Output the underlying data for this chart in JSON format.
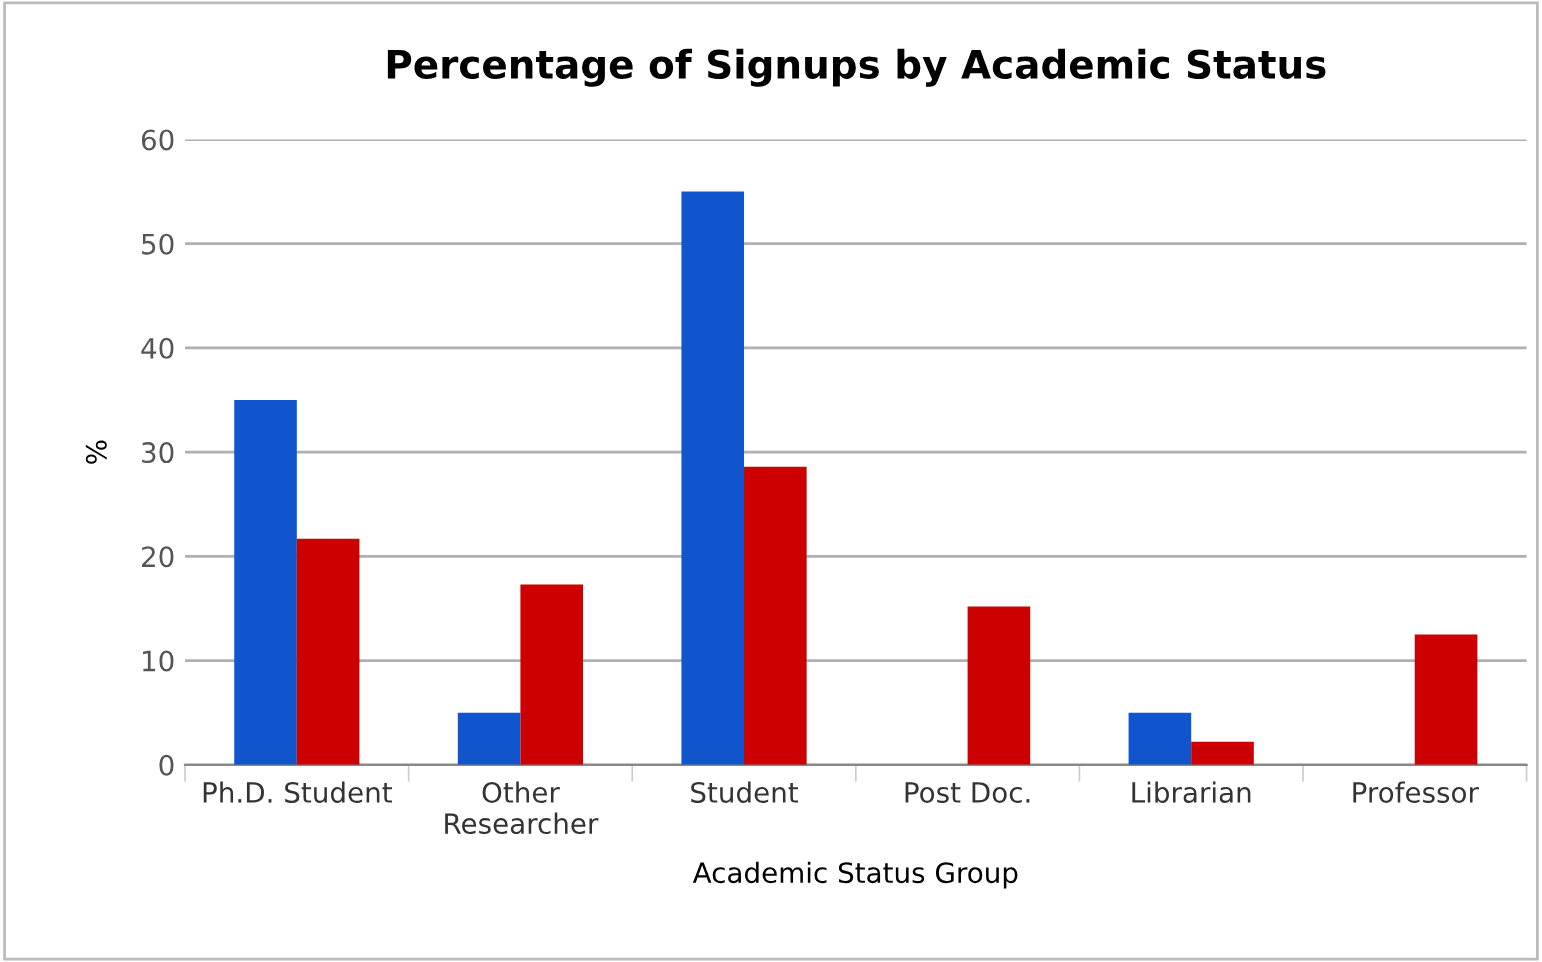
{
  "chart_data": {
    "type": "bar",
    "title": "Percentage of Signups by Academic Status",
    "xlabel": "Academic Status Group",
    "ylabel": "%",
    "categories": [
      "Ph.D. Student",
      "Other\nResearcher",
      "Student",
      "Post Doc.",
      "Librarian",
      "Professor"
    ],
    "series": [
      {
        "color": "#1155cc",
        "values": [
          35,
          5,
          55,
          0,
          5,
          0
        ]
      },
      {
        "color": "#cc0000",
        "values": [
          21.7,
          17.3,
          28.6,
          15.2,
          2.2,
          12.5
        ]
      }
    ],
    "ylim": [
      0,
      60
    ],
    "yticks": [
      0,
      10,
      20,
      30,
      40,
      50,
      60
    ],
    "grid": "y",
    "legend": false
  }
}
